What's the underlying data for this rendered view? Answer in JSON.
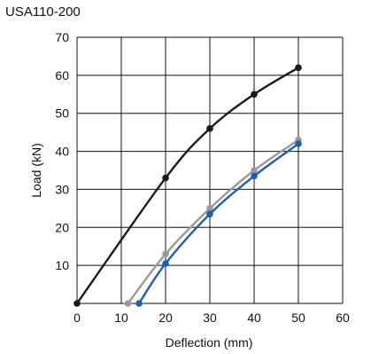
{
  "chart_data": {
    "type": "line",
    "title": "USA110-200",
    "xlabel": "Deflection (mm)",
    "ylabel": "Load (kN)",
    "xlim": [
      0,
      60
    ],
    "ylim": [
      0,
      70
    ],
    "x_ticks": [
      "0",
      "10",
      "20",
      "30",
      "40",
      "50",
      "60"
    ],
    "y_ticks": [
      "10",
      "20",
      "30",
      "40",
      "50",
      "60",
      "70"
    ],
    "grid": true,
    "legend": "none",
    "series": [
      {
        "color": "#1a1a1a",
        "points": [
          [
            0,
            0
          ],
          [
            20,
            33
          ],
          [
            30,
            46
          ],
          [
            40,
            55
          ],
          [
            50,
            62
          ]
        ]
      },
      {
        "color": "#9a9a9a",
        "points": [
          [
            11.5,
            0
          ],
          [
            20,
            13
          ],
          [
            30,
            25
          ],
          [
            40,
            35
          ],
          [
            50,
            43
          ]
        ]
      },
      {
        "color": "#1f5fb0",
        "points": [
          [
            14,
            0
          ],
          [
            20,
            10.5
          ],
          [
            30,
            23.5
          ],
          [
            40,
            33.5
          ],
          [
            50,
            42
          ]
        ]
      }
    ]
  }
}
